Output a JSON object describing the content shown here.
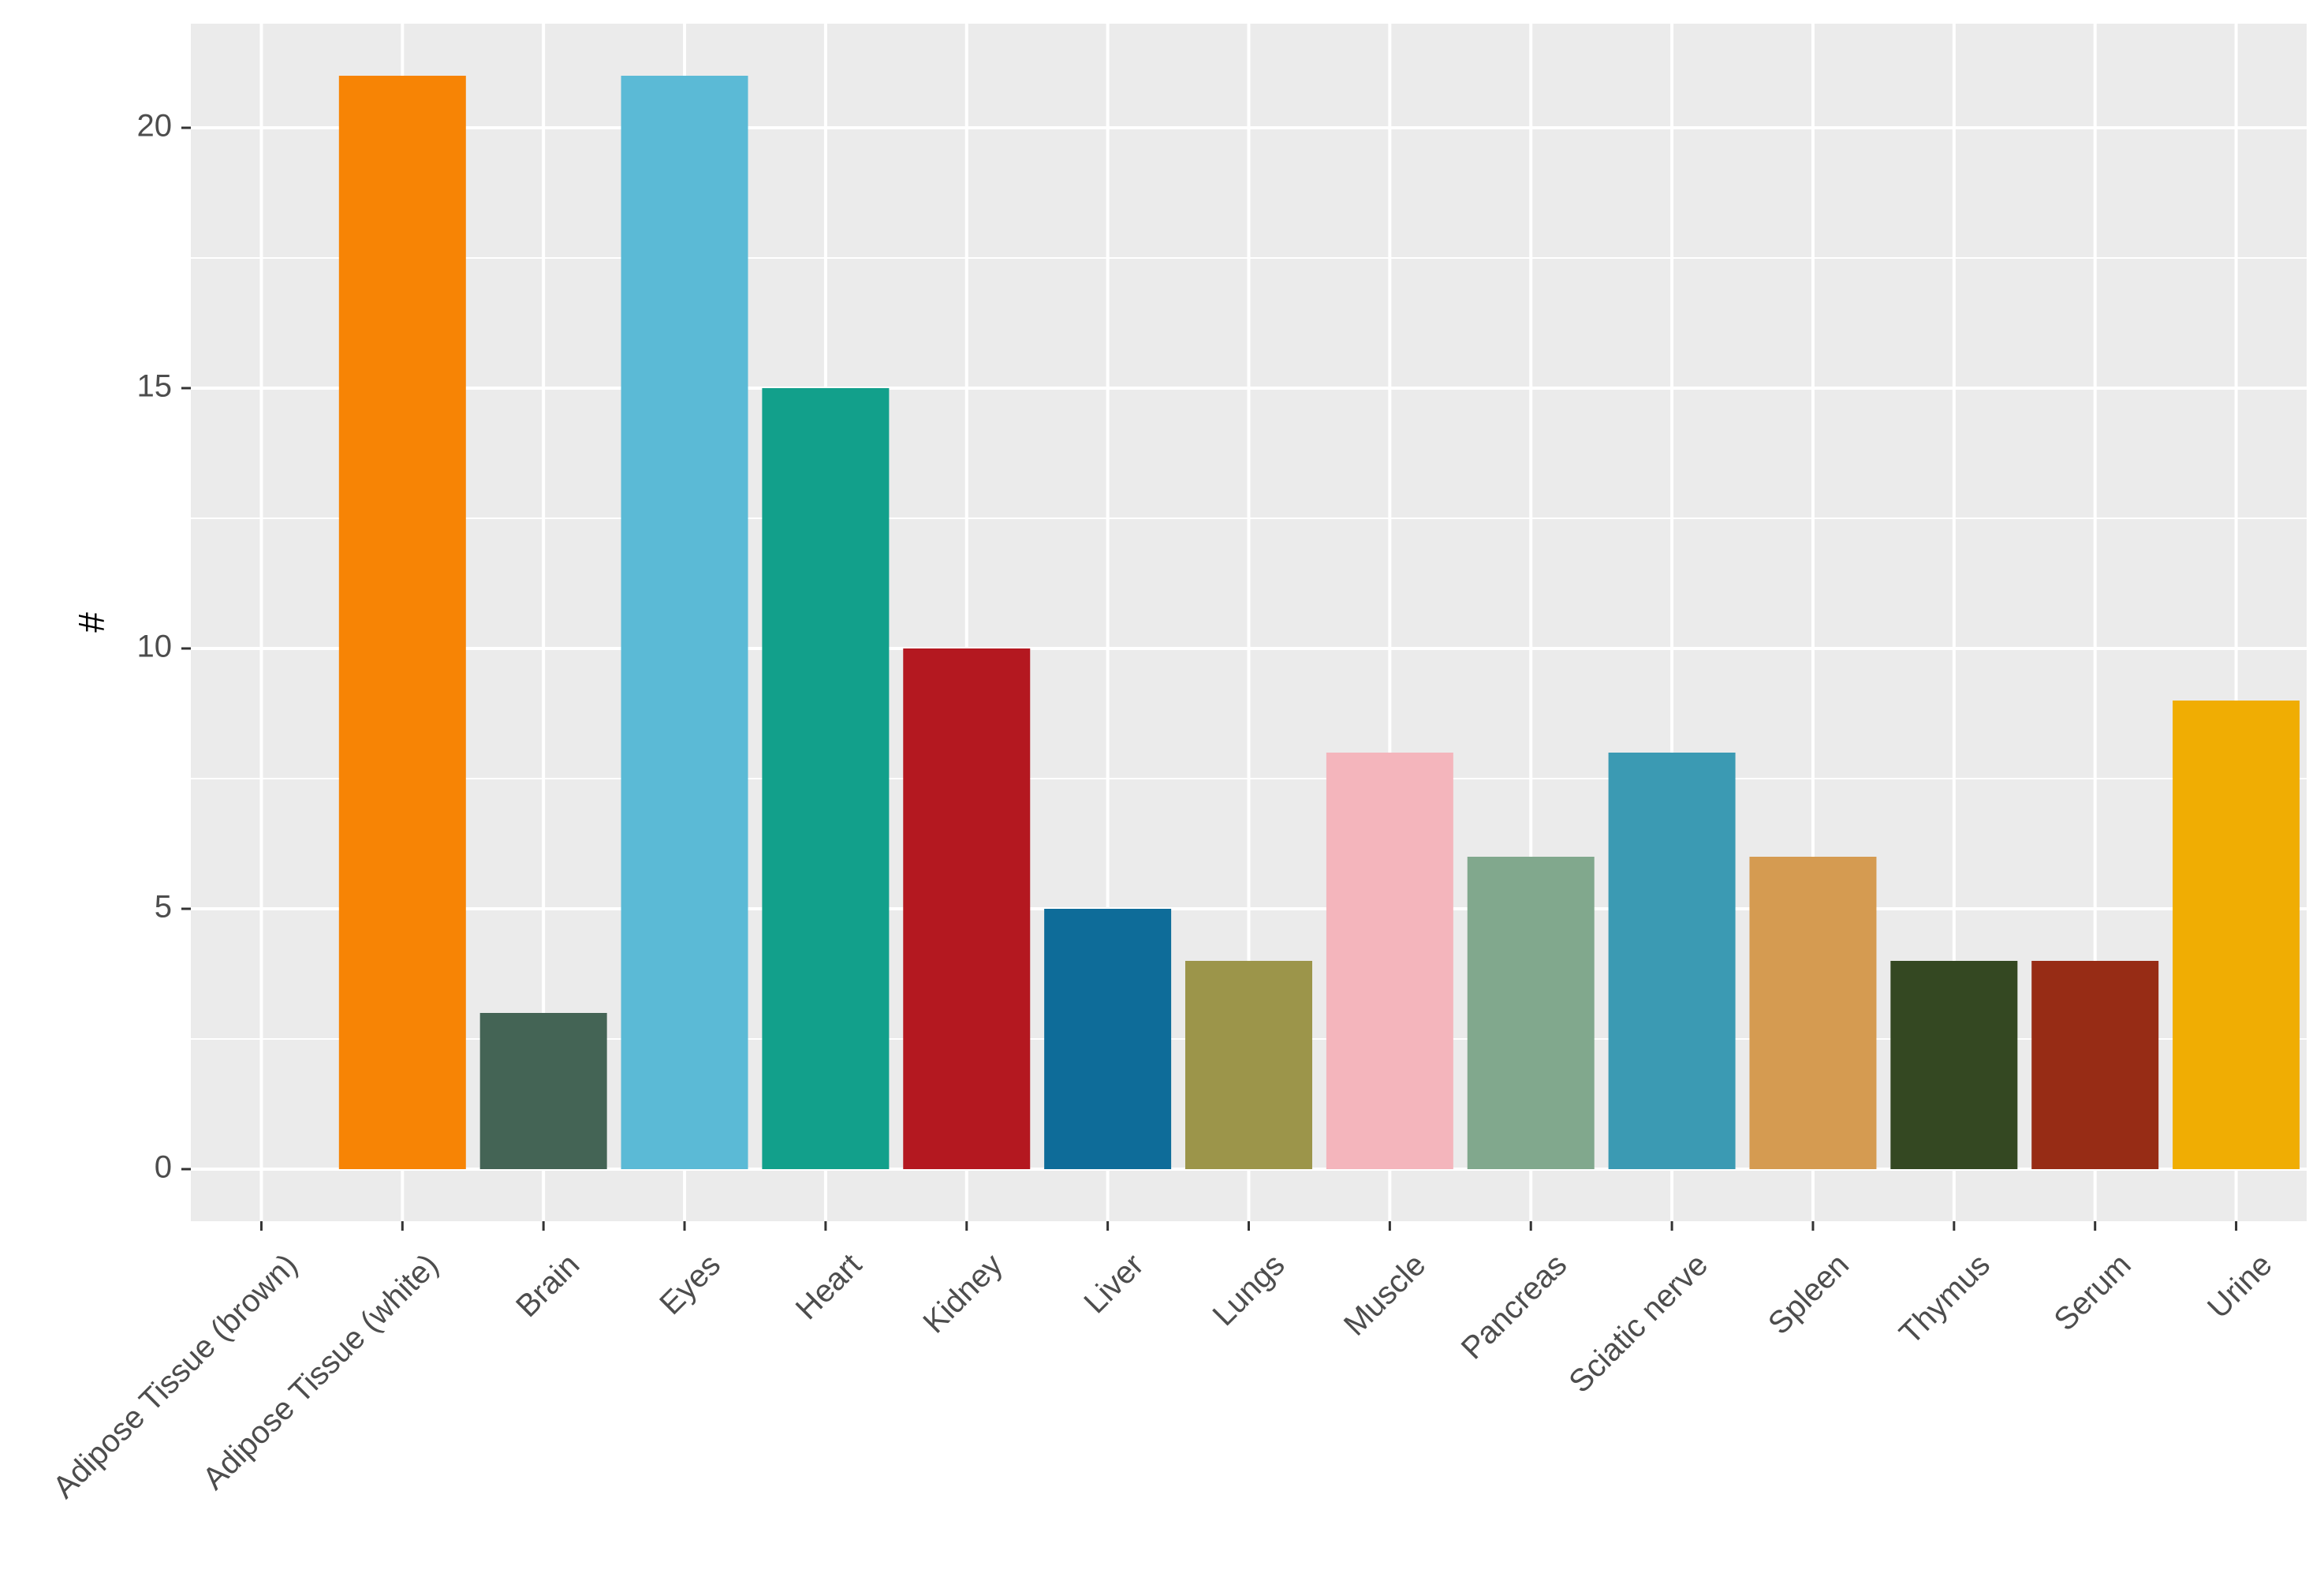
{
  "chart_data": {
    "type": "bar",
    "title": "",
    "xlabel": "",
    "ylabel": "#",
    "ylim": [
      -1,
      22
    ],
    "yticks": [
      0,
      5,
      10,
      15,
      20
    ],
    "grid": true,
    "legend": "none",
    "background_color": "#EBEBEB",
    "grid_color": "#FFFFFF",
    "categories": [
      "Adipose Tissue (brown)",
      "Adipose Tissue (white)",
      "Brain",
      "Eyes",
      "Heart",
      "Kidney",
      "Liver",
      "Lungs",
      "Muscle",
      "Pancreas",
      "Sciatic nerve",
      "Spleen",
      "Thymus",
      "Serum",
      "Urine"
    ],
    "values": [
      0,
      21,
      3,
      21,
      15,
      10,
      5,
      4,
      8,
      6,
      8,
      6,
      4,
      4,
      9
    ],
    "colors": [
      "#EBEBEB",
      "#F78405",
      "#446455",
      "#5BBAD6",
      "#12A08B",
      "#B41820",
      "#0E6C99",
      "#9C954A",
      "#F4B5BC",
      "#81A88D",
      "#3B9AB3",
      "#D59B51",
      "#344822",
      "#972C15",
      "#F0AD03"
    ]
  }
}
